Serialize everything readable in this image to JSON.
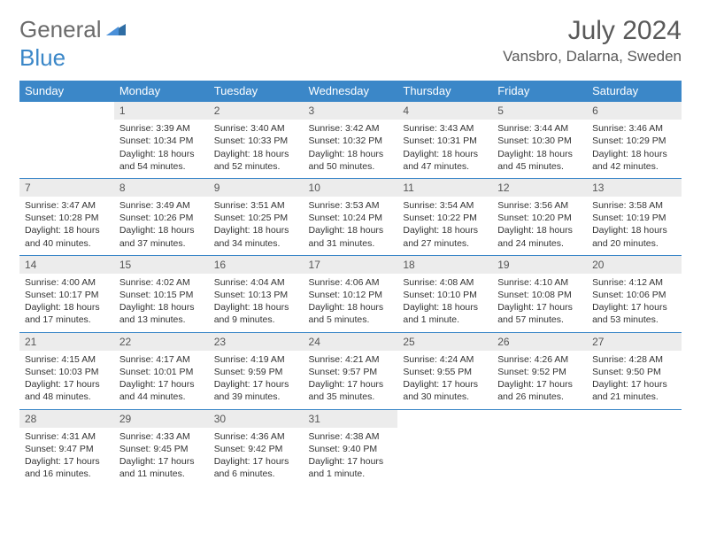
{
  "logo": {
    "part1": "General",
    "part2": "Blue"
  },
  "title": "July 2024",
  "location": "Vansbro, Dalarna, Sweden",
  "colors": {
    "header_bg": "#3b87c8",
    "header_text": "#ffffff",
    "daynum_bg": "#ececec",
    "border": "#3b87c8",
    "text": "#333333",
    "title_color": "#595959"
  },
  "dayHeaders": [
    "Sunday",
    "Monday",
    "Tuesday",
    "Wednesday",
    "Thursday",
    "Friday",
    "Saturday"
  ],
  "weeks": [
    [
      null,
      {
        "num": "1",
        "sunrise": "Sunrise: 3:39 AM",
        "sunset": "Sunset: 10:34 PM",
        "daylight": "Daylight: 18 hours and 54 minutes."
      },
      {
        "num": "2",
        "sunrise": "Sunrise: 3:40 AM",
        "sunset": "Sunset: 10:33 PM",
        "daylight": "Daylight: 18 hours and 52 minutes."
      },
      {
        "num": "3",
        "sunrise": "Sunrise: 3:42 AM",
        "sunset": "Sunset: 10:32 PM",
        "daylight": "Daylight: 18 hours and 50 minutes."
      },
      {
        "num": "4",
        "sunrise": "Sunrise: 3:43 AM",
        "sunset": "Sunset: 10:31 PM",
        "daylight": "Daylight: 18 hours and 47 minutes."
      },
      {
        "num": "5",
        "sunrise": "Sunrise: 3:44 AM",
        "sunset": "Sunset: 10:30 PM",
        "daylight": "Daylight: 18 hours and 45 minutes."
      },
      {
        "num": "6",
        "sunrise": "Sunrise: 3:46 AM",
        "sunset": "Sunset: 10:29 PM",
        "daylight": "Daylight: 18 hours and 42 minutes."
      }
    ],
    [
      {
        "num": "7",
        "sunrise": "Sunrise: 3:47 AM",
        "sunset": "Sunset: 10:28 PM",
        "daylight": "Daylight: 18 hours and 40 minutes."
      },
      {
        "num": "8",
        "sunrise": "Sunrise: 3:49 AM",
        "sunset": "Sunset: 10:26 PM",
        "daylight": "Daylight: 18 hours and 37 minutes."
      },
      {
        "num": "9",
        "sunrise": "Sunrise: 3:51 AM",
        "sunset": "Sunset: 10:25 PM",
        "daylight": "Daylight: 18 hours and 34 minutes."
      },
      {
        "num": "10",
        "sunrise": "Sunrise: 3:53 AM",
        "sunset": "Sunset: 10:24 PM",
        "daylight": "Daylight: 18 hours and 31 minutes."
      },
      {
        "num": "11",
        "sunrise": "Sunrise: 3:54 AM",
        "sunset": "Sunset: 10:22 PM",
        "daylight": "Daylight: 18 hours and 27 minutes."
      },
      {
        "num": "12",
        "sunrise": "Sunrise: 3:56 AM",
        "sunset": "Sunset: 10:20 PM",
        "daylight": "Daylight: 18 hours and 24 minutes."
      },
      {
        "num": "13",
        "sunrise": "Sunrise: 3:58 AM",
        "sunset": "Sunset: 10:19 PM",
        "daylight": "Daylight: 18 hours and 20 minutes."
      }
    ],
    [
      {
        "num": "14",
        "sunrise": "Sunrise: 4:00 AM",
        "sunset": "Sunset: 10:17 PM",
        "daylight": "Daylight: 18 hours and 17 minutes."
      },
      {
        "num": "15",
        "sunrise": "Sunrise: 4:02 AM",
        "sunset": "Sunset: 10:15 PM",
        "daylight": "Daylight: 18 hours and 13 minutes."
      },
      {
        "num": "16",
        "sunrise": "Sunrise: 4:04 AM",
        "sunset": "Sunset: 10:13 PM",
        "daylight": "Daylight: 18 hours and 9 minutes."
      },
      {
        "num": "17",
        "sunrise": "Sunrise: 4:06 AM",
        "sunset": "Sunset: 10:12 PM",
        "daylight": "Daylight: 18 hours and 5 minutes."
      },
      {
        "num": "18",
        "sunrise": "Sunrise: 4:08 AM",
        "sunset": "Sunset: 10:10 PM",
        "daylight": "Daylight: 18 hours and 1 minute."
      },
      {
        "num": "19",
        "sunrise": "Sunrise: 4:10 AM",
        "sunset": "Sunset: 10:08 PM",
        "daylight": "Daylight: 17 hours and 57 minutes."
      },
      {
        "num": "20",
        "sunrise": "Sunrise: 4:12 AM",
        "sunset": "Sunset: 10:06 PM",
        "daylight": "Daylight: 17 hours and 53 minutes."
      }
    ],
    [
      {
        "num": "21",
        "sunrise": "Sunrise: 4:15 AM",
        "sunset": "Sunset: 10:03 PM",
        "daylight": "Daylight: 17 hours and 48 minutes."
      },
      {
        "num": "22",
        "sunrise": "Sunrise: 4:17 AM",
        "sunset": "Sunset: 10:01 PM",
        "daylight": "Daylight: 17 hours and 44 minutes."
      },
      {
        "num": "23",
        "sunrise": "Sunrise: 4:19 AM",
        "sunset": "Sunset: 9:59 PM",
        "daylight": "Daylight: 17 hours and 39 minutes."
      },
      {
        "num": "24",
        "sunrise": "Sunrise: 4:21 AM",
        "sunset": "Sunset: 9:57 PM",
        "daylight": "Daylight: 17 hours and 35 minutes."
      },
      {
        "num": "25",
        "sunrise": "Sunrise: 4:24 AM",
        "sunset": "Sunset: 9:55 PM",
        "daylight": "Daylight: 17 hours and 30 minutes."
      },
      {
        "num": "26",
        "sunrise": "Sunrise: 4:26 AM",
        "sunset": "Sunset: 9:52 PM",
        "daylight": "Daylight: 17 hours and 26 minutes."
      },
      {
        "num": "27",
        "sunrise": "Sunrise: 4:28 AM",
        "sunset": "Sunset: 9:50 PM",
        "daylight": "Daylight: 17 hours and 21 minutes."
      }
    ],
    [
      {
        "num": "28",
        "sunrise": "Sunrise: 4:31 AM",
        "sunset": "Sunset: 9:47 PM",
        "daylight": "Daylight: 17 hours and 16 minutes."
      },
      {
        "num": "29",
        "sunrise": "Sunrise: 4:33 AM",
        "sunset": "Sunset: 9:45 PM",
        "daylight": "Daylight: 17 hours and 11 minutes."
      },
      {
        "num": "30",
        "sunrise": "Sunrise: 4:36 AM",
        "sunset": "Sunset: 9:42 PM",
        "daylight": "Daylight: 17 hours and 6 minutes."
      },
      {
        "num": "31",
        "sunrise": "Sunrise: 4:38 AM",
        "sunset": "Sunset: 9:40 PM",
        "daylight": "Daylight: 17 hours and 1 minute."
      },
      null,
      null,
      null
    ]
  ]
}
